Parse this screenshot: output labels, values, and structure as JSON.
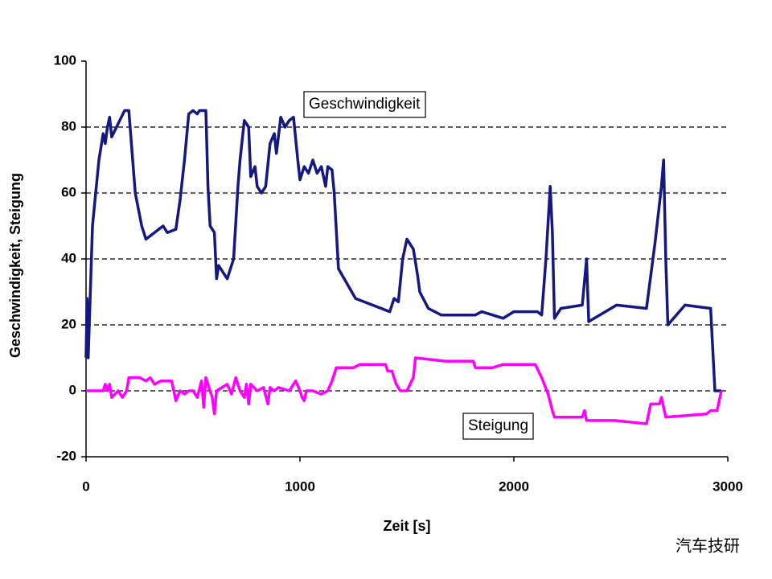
{
  "chart_data": {
    "type": "line",
    "x_label": "Zeit [s]",
    "y_label": "Geschwindigkeit, Steigung",
    "xlim": [
      0,
      3000
    ],
    "xticks": [
      0,
      1000,
      2000,
      3000
    ],
    "ylim": [
      -20,
      100
    ],
    "yticks": [
      -20,
      0,
      20,
      40,
      60,
      80,
      100
    ],
    "grid": true,
    "watermark": "汽车技研",
    "series": [
      {
        "name": "Geschwindigkeit",
        "color": "#14187f",
        "x": [
          0,
          5,
          10,
          30,
          60,
          80,
          90,
          100,
          110,
          120,
          180,
          200,
          230,
          260,
          280,
          320,
          360,
          380,
          420,
          440,
          460,
          480,
          500,
          520,
          530,
          560,
          570,
          580,
          600,
          610,
          620,
          640,
          660,
          690,
          710,
          720,
          740,
          760,
          770,
          790,
          800,
          820,
          840,
          860,
          880,
          890,
          910,
          930,
          950,
          970,
          990,
          1000,
          1020,
          1040,
          1060,
          1080,
          1100,
          1120,
          1130,
          1150,
          1160,
          1180,
          1260,
          1420,
          1440,
          1460,
          1480,
          1500,
          1530,
          1550,
          1560,
          1600,
          1660,
          1820,
          1850,
          1950,
          2000,
          2110,
          2130,
          2150,
          2170,
          2180,
          2190,
          2220,
          2320,
          2340,
          2350,
          2480,
          2620,
          2660,
          2690,
          2700,
          2710,
          2720,
          2800,
          2920,
          2940,
          2970
        ],
        "values": [
          10,
          28,
          10,
          50,
          70,
          78,
          75,
          80,
          83,
          77,
          85,
          85,
          60,
          50,
          46,
          48,
          50,
          48,
          49,
          58,
          70,
          84,
          85,
          84,
          85,
          85,
          62,
          50,
          48,
          34,
          38,
          36,
          34,
          40,
          62,
          70,
          82,
          80,
          65,
          68,
          62,
          60,
          62,
          75,
          78,
          72,
          83,
          80,
          82,
          83,
          70,
          64,
          68,
          66,
          70,
          66,
          68,
          62,
          68,
          67,
          60,
          37,
          28,
          24,
          28,
          27,
          40,
          46,
          43,
          35,
          30,
          25,
          23,
          23,
          24,
          22,
          24,
          24,
          23,
          40,
          62,
          48,
          22,
          25,
          26,
          40,
          21,
          26,
          25,
          45,
          62,
          70,
          40,
          20,
          26,
          25,
          0,
          0
        ]
      },
      {
        "name": "Steigung",
        "color": "#ff00ff",
        "x": [
          0,
          80,
          90,
          100,
          110,
          120,
          150,
          170,
          190,
          200,
          250,
          280,
          300,
          320,
          350,
          400,
          410,
          420,
          440,
          460,
          480,
          500,
          520,
          540,
          550,
          560,
          570,
          590,
          600,
          610,
          660,
          680,
          700,
          720,
          740,
          750,
          760,
          770,
          800,
          830,
          850,
          860,
          880,
          900,
          950,
          980,
          1000,
          1010,
          1020,
          1030,
          1060,
          1100,
          1130,
          1150,
          1170,
          1250,
          1280,
          1400,
          1410,
          1430,
          1450,
          1470,
          1500,
          1530,
          1540,
          1680,
          1810,
          1820,
          1900,
          1950,
          2100,
          2130,
          2160,
          2180,
          2190,
          2320,
          2330,
          2340,
          2470,
          2620,
          2640,
          2680,
          2690,
          2710,
          2900,
          2920,
          2950,
          2970
        ],
        "values": [
          0,
          0,
          2,
          0,
          2,
          -2,
          0,
          -2,
          0,
          4,
          4,
          3,
          4,
          2,
          3,
          3,
          0,
          -3,
          0,
          -1,
          0,
          0,
          -2,
          3,
          -5,
          4,
          2,
          -2,
          -7,
          0,
          2,
          -1,
          4,
          0,
          -2,
          2,
          -4,
          2,
          0,
          1,
          -4,
          1,
          0,
          1,
          0,
          3,
          0,
          -2,
          -3,
          0,
          0,
          -1,
          0,
          3,
          7,
          7,
          8,
          8,
          6,
          6,
          2,
          0,
          0,
          4,
          10,
          9,
          9,
          7,
          7,
          8,
          8,
          4,
          -1,
          -6,
          -8,
          -8,
          -6,
          -9,
          -9,
          -10,
          -4,
          -4,
          -2,
          -8,
          -7,
          -6,
          -6,
          0
        ]
      }
    ]
  }
}
